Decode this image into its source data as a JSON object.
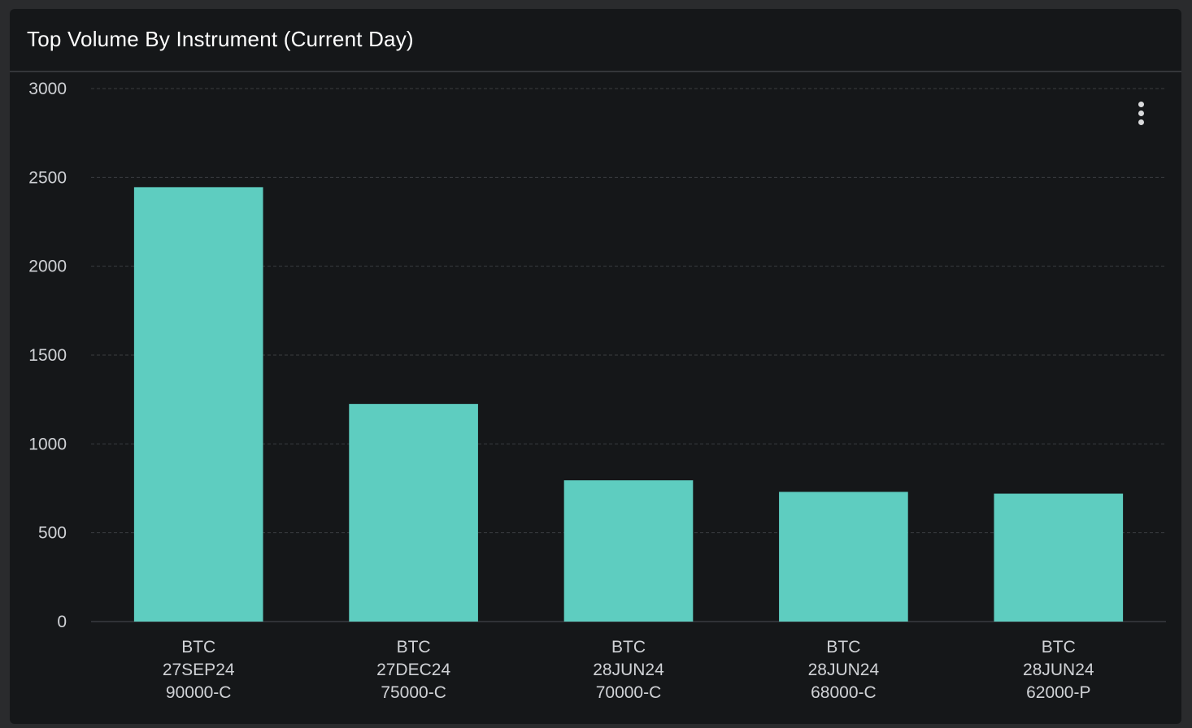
{
  "panel": {
    "title": "Top Volume By Instrument (Current Day)",
    "menu_icon": "vertical-ellipsis-icon"
  },
  "colors": {
    "bar": "#5ecdc0",
    "grid": "#3a3c40",
    "axis_text": "#d0d2d6",
    "panel_bg": "#151719"
  },
  "chart_data": {
    "type": "bar",
    "title": "Top Volume By Instrument (Current Day)",
    "xlabel": "",
    "ylabel": "",
    "ylim": [
      0,
      3000
    ],
    "yticks": [
      0,
      500,
      1000,
      1500,
      2000,
      2500,
      3000
    ],
    "grid": true,
    "legend": "none",
    "categories": [
      [
        "BTC",
        "27SEP24",
        "90000-C"
      ],
      [
        "BTC",
        "27DEC24",
        "75000-C"
      ],
      [
        "BTC",
        "28JUN24",
        "70000-C"
      ],
      [
        "BTC",
        "28JUN24",
        "68000-C"
      ],
      [
        "BTC",
        "28JUN24",
        "62000-P"
      ]
    ],
    "values": [
      2445,
      1225,
      795,
      730,
      720
    ]
  }
}
